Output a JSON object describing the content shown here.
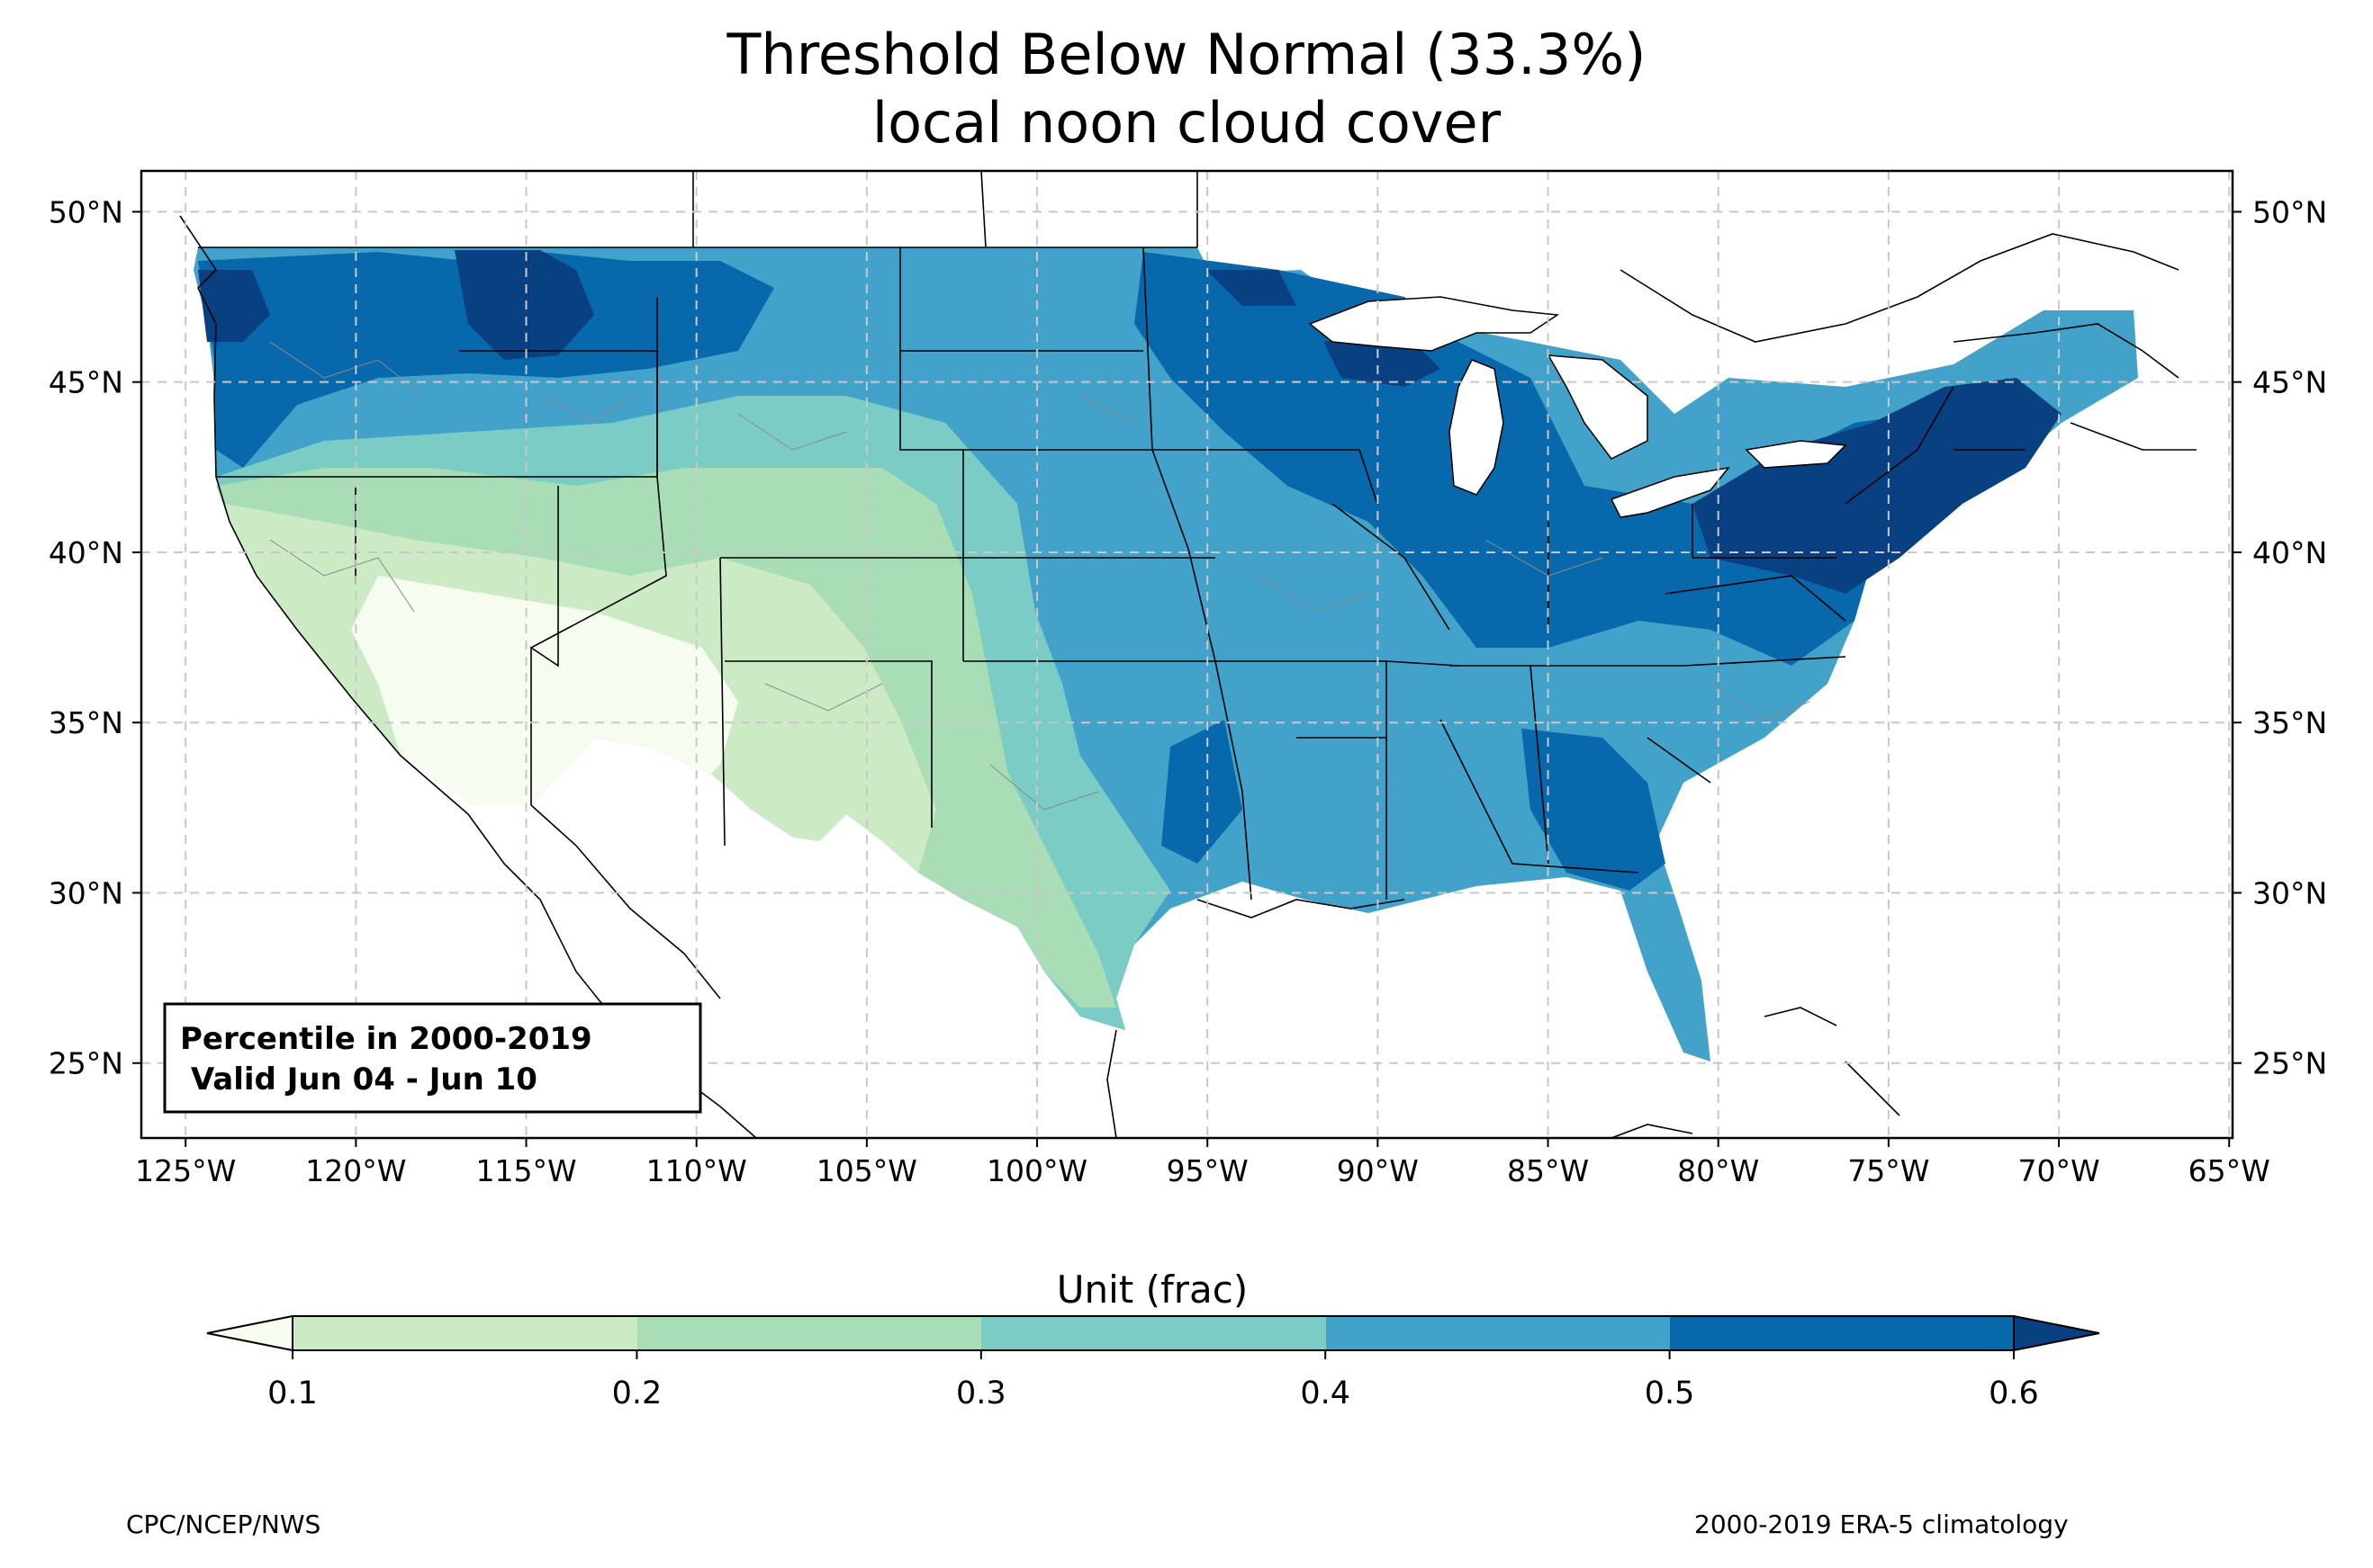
{
  "title": {
    "line1": "Threshold Below Normal (33.3%)",
    "line2": "local noon cloud cover"
  },
  "map": {
    "lon_range": [
      -126.3,
      -64.9
    ],
    "lat_range": [
      22.8,
      51.2
    ],
    "lon_ticks": [
      "125°W",
      "120°W",
      "115°W",
      "110°W",
      "105°W",
      "100°W",
      "95°W",
      "90°W",
      "85°W",
      "80°W",
      "75°W",
      "70°W",
      "65°W"
    ],
    "lon_values": [
      -125,
      -120,
      -115,
      -110,
      -105,
      -100,
      -95,
      -90,
      -85,
      -80,
      -75,
      -70,
      -65
    ],
    "lat_ticks": [
      "50°N",
      "45°N",
      "40°N",
      "35°N",
      "30°N",
      "25°N"
    ],
    "lat_values": [
      50,
      45,
      40,
      35,
      30,
      25
    ],
    "grid": true
  },
  "info_box": {
    "line1": "Percentile in 2000-2019",
    "line2": " Valid Jun 04 - Jun 10"
  },
  "colorbar": {
    "label": "Unit (frac)",
    "ticks": [
      "0.1",
      "0.2",
      "0.3",
      "0.4",
      "0.5",
      "0.6"
    ],
    "colors": {
      "under": "#f7fcf0",
      "b1": "#ccebc5",
      "b2": "#a8ddb5",
      "b3": "#7bccc4",
      "b4": "#43a2ca",
      "b5": "#0868ac",
      "over": "#084081"
    }
  },
  "footer": {
    "left": "CPC/NCEP/NWS",
    "right": "2000-2019 ERA-5 climatology"
  }
}
